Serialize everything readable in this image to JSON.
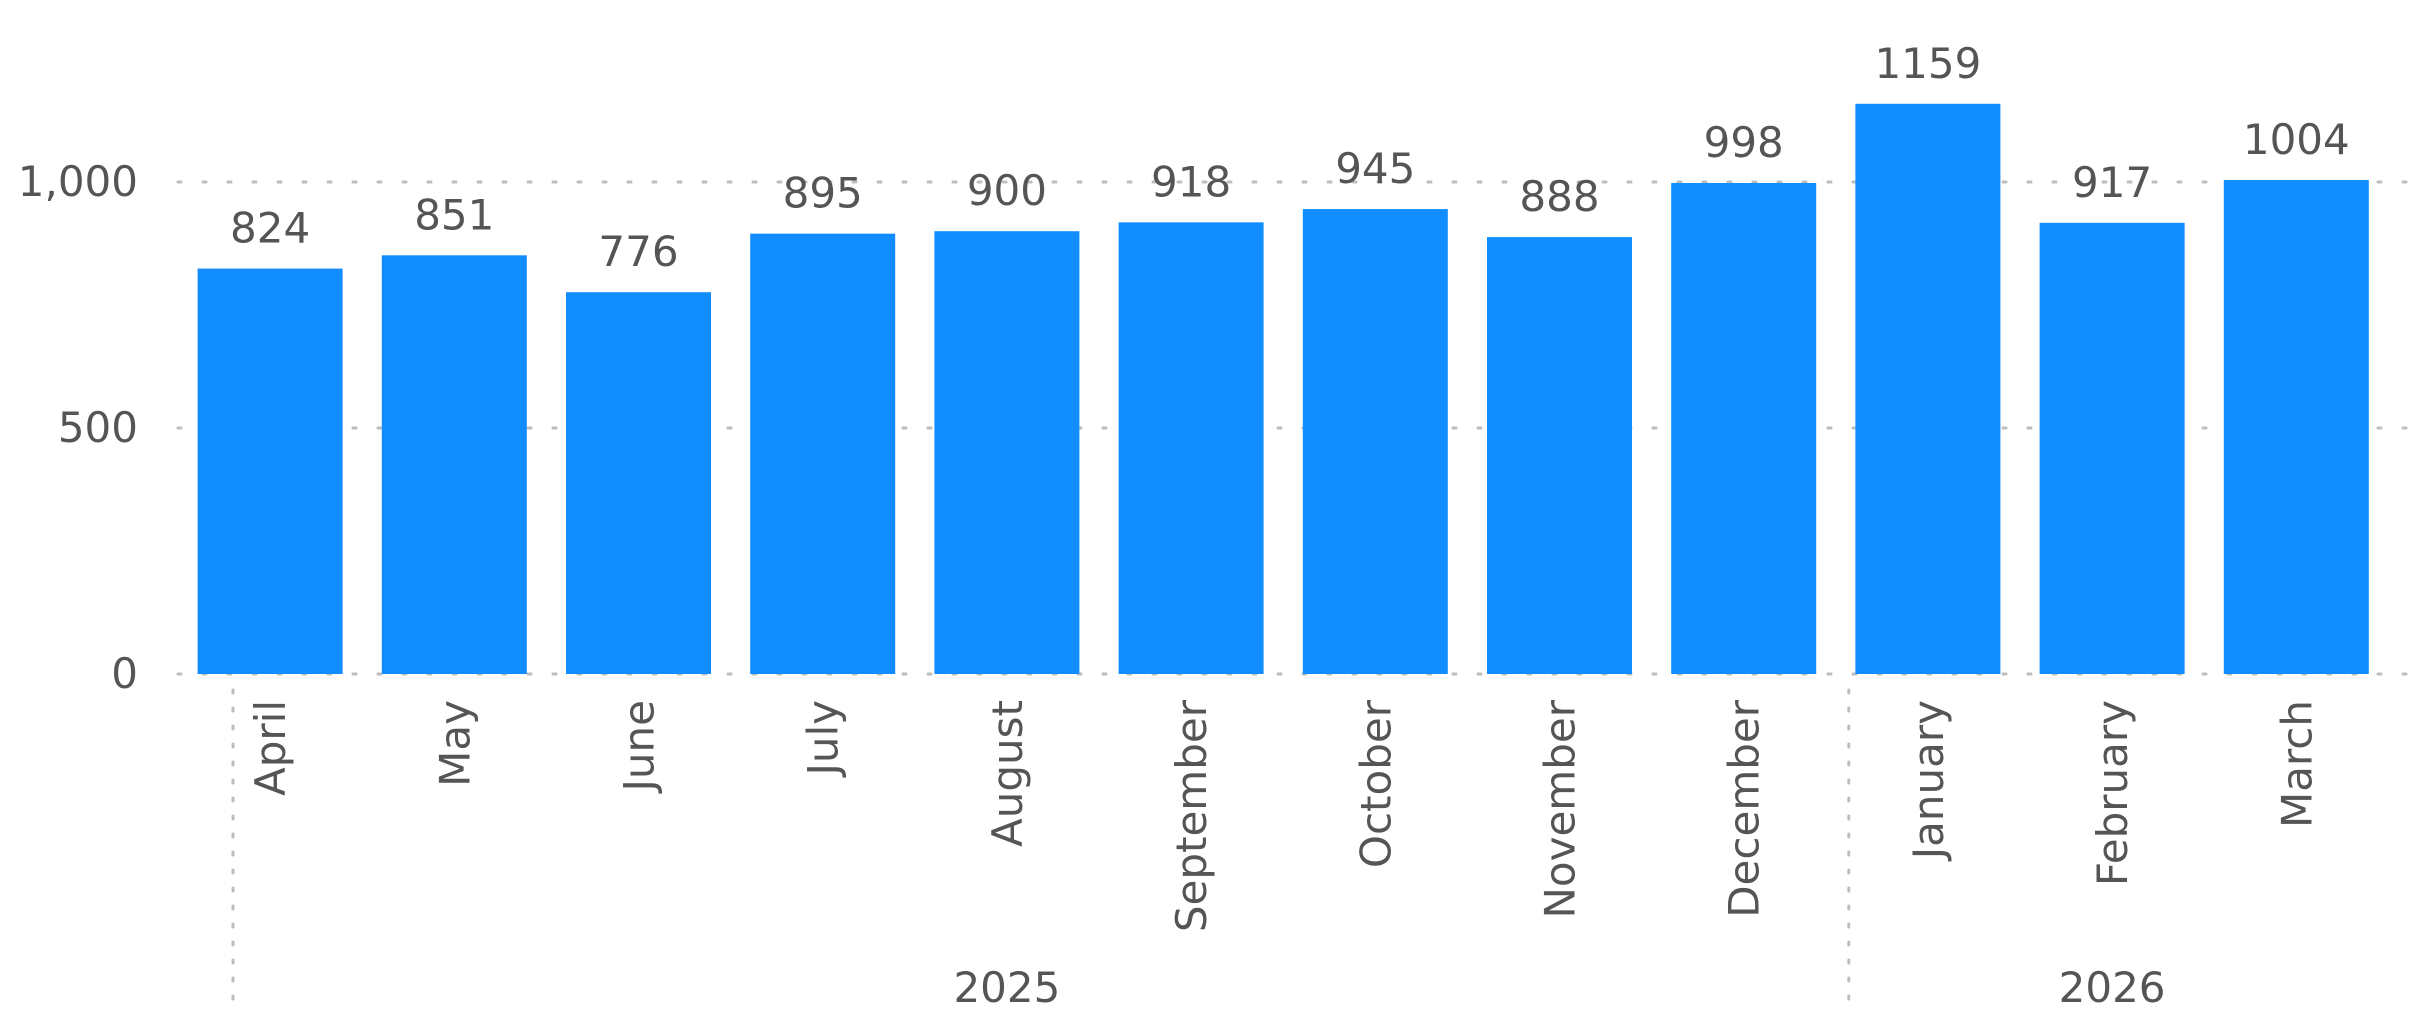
{
  "chart_data": {
    "type": "bar",
    "categories": [
      "April",
      "May",
      "June",
      "July",
      "August",
      "September",
      "October",
      "November",
      "December",
      "January",
      "February",
      "March"
    ],
    "values": [
      824,
      851,
      776,
      895,
      900,
      918,
      945,
      888,
      998,
      1159,
      917,
      1004
    ],
    "category_groups": [
      {
        "label": "2025",
        "categories": [
          "April",
          "May",
          "June",
          "July",
          "August",
          "September",
          "October",
          "November",
          "December"
        ]
      },
      {
        "label": "2026",
        "categories": [
          "January",
          "February",
          "March"
        ]
      }
    ],
    "y_ticks": [
      {
        "value": 0,
        "label": "0"
      },
      {
        "value": 500,
        "label": "500"
      },
      {
        "value": 1000,
        "label": "1,000"
      }
    ],
    "ylim": [
      0,
      1200
    ],
    "grid": true,
    "legend": "none",
    "bar_color": "#118DFF",
    "title": "",
    "xlabel": "",
    "ylabel": ""
  }
}
